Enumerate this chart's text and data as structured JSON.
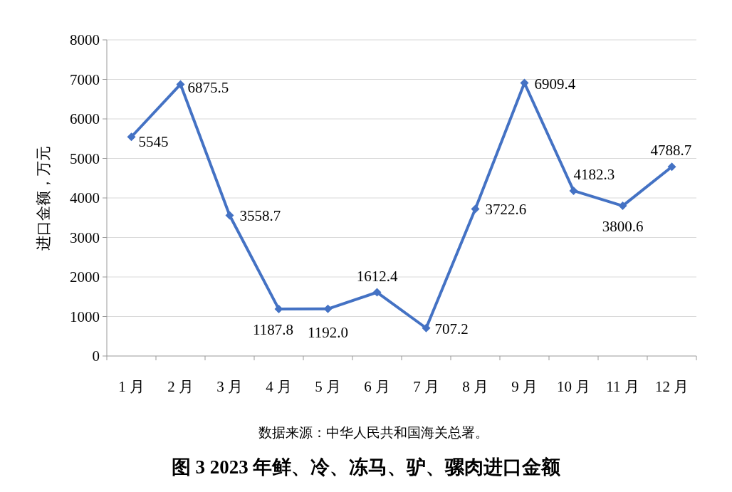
{
  "chart_data": {
    "type": "line",
    "title": "图 3  2023 年鲜、冷、冻马、驴、骡肉进口金额",
    "ylabel": "进口金额，万元",
    "annotations": [
      "数据来源：中华人民共和国海关总署。"
    ],
    "categories": [
      "1 月",
      "2 月",
      "3 月",
      "4 月",
      "5 月",
      "6 月",
      "7 月",
      "8 月",
      "9 月",
      "10 月",
      "11 月",
      "12 月"
    ],
    "series": [
      {
        "color": "#4472c4",
        "values": [
          5545,
          6875.5,
          3558.7,
          1187.8,
          1192.0,
          1612.4,
          707.2,
          3722.6,
          6909.4,
          4182.3,
          3800.6,
          4788.7
        ],
        "value_labels": [
          "5545",
          "6875.5",
          "3558.7",
          "1187.8",
          "1192.0",
          "1612.4",
          "707.2",
          "3722.6",
          "6909.4",
          "4182.3",
          "3800.6",
          "4788.7"
        ]
      }
    ],
    "ylim": [
      0,
      8000
    ],
    "yticks": [
      0,
      1000,
      2000,
      3000,
      4000,
      5000,
      6000,
      7000,
      8000
    ],
    "grid": "y",
    "marker": "diamond",
    "line_style": "solid"
  }
}
